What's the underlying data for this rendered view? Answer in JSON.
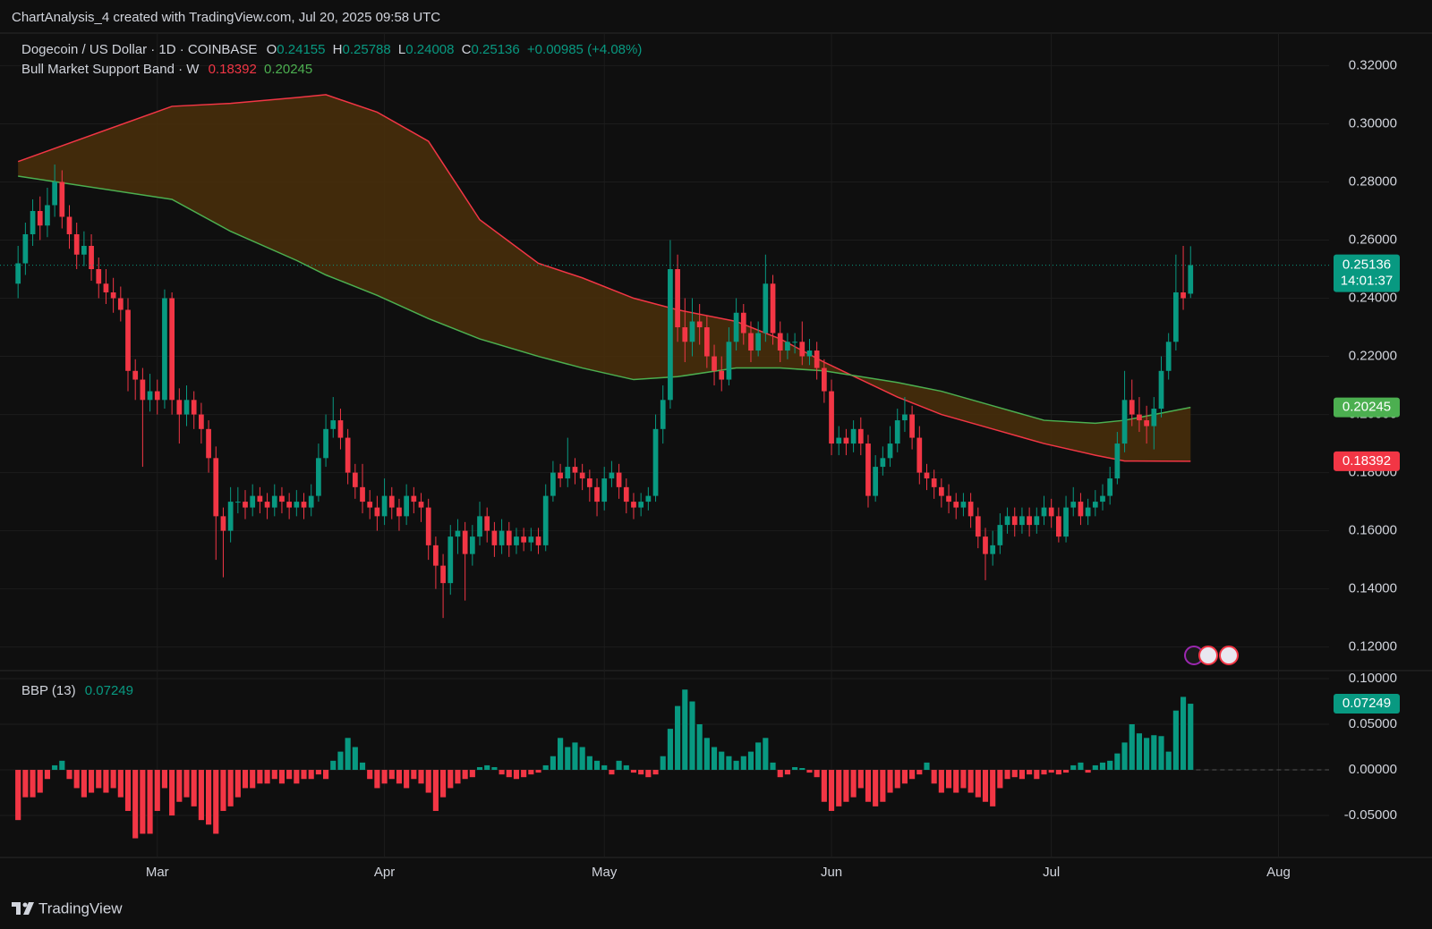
{
  "header": "ChartAnalysis_4 created with TradingView.com, Jul 20, 2025 09:58 UTC",
  "footer": "TradingView",
  "chart_data": [
    {
      "type": "candlestick",
      "title": "Dogecoin / US Dollar · 1D · COINBASE",
      "ohlc_labels": [
        "O",
        "H",
        "L",
        "C"
      ],
      "change": "+0.00985 (+4.08%)",
      "countdown": "14:01:37",
      "up_color": "#089981",
      "down_color": "#f23645",
      "grid": true,
      "xlim": [
        -1,
        178.9
      ],
      "xticks": [
        {
          "value": 19,
          "label": "Mar"
        },
        {
          "value": 50,
          "label": "Apr"
        },
        {
          "value": 80,
          "label": "May"
        },
        {
          "value": 111,
          "label": "Jun"
        },
        {
          "value": 141,
          "label": "Jul"
        },
        {
          "value": 172,
          "label": "Aug"
        }
      ],
      "ylim": [
        0.1119,
        0.3312
      ],
      "yticks": [
        {
          "value": 0.12,
          "label": "0.12000"
        },
        {
          "value": 0.14,
          "label": "0.14000"
        },
        {
          "value": 0.16,
          "label": "0.16000"
        },
        {
          "value": 0.18,
          "label": "0.18000"
        },
        {
          "value": 0.2,
          "label": "0.20000"
        },
        {
          "value": 0.22,
          "label": "0.22000"
        },
        {
          "value": 0.24,
          "label": "0.24000"
        },
        {
          "value": 0.26,
          "label": "0.26000"
        },
        {
          "value": 0.28,
          "label": "0.28000"
        },
        {
          "value": 0.3,
          "label": "0.30000"
        },
        {
          "value": 0.32,
          "label": "0.32000"
        }
      ],
      "open": [
        0.245,
        0.252,
        0.262,
        0.27,
        0.265,
        0.272,
        0.28,
        0.268,
        0.262,
        0.255,
        0.258,
        0.25,
        0.245,
        0.242,
        0.24,
        0.236,
        0.215,
        0.212,
        0.205,
        0.208,
        0.205,
        0.24,
        0.205,
        0.2,
        0.205,
        0.2,
        0.195,
        0.185,
        0.165,
        0.16,
        0.17,
        0.17,
        0.168,
        0.172,
        0.17,
        0.168,
        0.172,
        0.17,
        0.168,
        0.17,
        0.168,
        0.172,
        0.185,
        0.195,
        0.198,
        0.192,
        0.18,
        0.175,
        0.17,
        0.168,
        0.165,
        0.172,
        0.168,
        0.165,
        0.172,
        0.17,
        0.168,
        0.155,
        0.148,
        0.142,
        0.158,
        0.16,
        0.152,
        0.158,
        0.165,
        0.16,
        0.155,
        0.16,
        0.155,
        0.158,
        0.156,
        0.158,
        0.155,
        0.172,
        0.18,
        0.178,
        0.182,
        0.18,
        0.178,
        0.175,
        0.17,
        0.178,
        0.18,
        0.175,
        0.17,
        0.168,
        0.17,
        0.172,
        0.195,
        0.205,
        0.25,
        0.23,
        0.225,
        0.232,
        0.23,
        0.22,
        0.215,
        0.212,
        0.225,
        0.235,
        0.228,
        0.222,
        0.228,
        0.245,
        0.228,
        0.222,
        0.225,
        0.225,
        0.22,
        0.222,
        0.216,
        0.208,
        0.19,
        0.192,
        0.19,
        0.195,
        0.19,
        0.172,
        0.182,
        0.185,
        0.19,
        0.198,
        0.2,
        0.192,
        0.18,
        0.178,
        0.175,
        0.172,
        0.17,
        0.168,
        0.17,
        0.165,
        0.158,
        0.152,
        0.155,
        0.162,
        0.165,
        0.162,
        0.165,
        0.162,
        0.165,
        0.168,
        0.165,
        0.158,
        0.168,
        0.17,
        0.165,
        0.168,
        0.17,
        0.172,
        0.178,
        0.19,
        0.205,
        0.2,
        0.198,
        0.196,
        0.202,
        0.215,
        0.225,
        0.242,
        0.24155
      ],
      "high": [
        0.258,
        0.266,
        0.274,
        0.275,
        0.278,
        0.286,
        0.284,
        0.272,
        0.266,
        0.263,
        0.262,
        0.254,
        0.25,
        0.247,
        0.244,
        0.24,
        0.219,
        0.216,
        0.214,
        0.212,
        0.243,
        0.242,
        0.209,
        0.21,
        0.208,
        0.204,
        0.198,
        0.189,
        0.168,
        0.175,
        0.175,
        0.174,
        0.176,
        0.175,
        0.173,
        0.176,
        0.175,
        0.173,
        0.174,
        0.173,
        0.176,
        0.19,
        0.2,
        0.206,
        0.202,
        0.195,
        0.183,
        0.183,
        0.174,
        0.172,
        0.178,
        0.175,
        0.171,
        0.176,
        0.175,
        0.173,
        0.171,
        0.158,
        0.152,
        0.162,
        0.164,
        0.163,
        0.162,
        0.17,
        0.168,
        0.163,
        0.164,
        0.163,
        0.161,
        0.161,
        0.161,
        0.161,
        0.176,
        0.184,
        0.183,
        0.192,
        0.185,
        0.183,
        0.181,
        0.178,
        0.182,
        0.184,
        0.183,
        0.178,
        0.173,
        0.173,
        0.175,
        0.2,
        0.21,
        0.26,
        0.255,
        0.24,
        0.24,
        0.238,
        0.234,
        0.224,
        0.22,
        0.23,
        0.24,
        0.238,
        0.232,
        0.232,
        0.255,
        0.248,
        0.232,
        0.228,
        0.228,
        0.232,
        0.226,
        0.225,
        0.219,
        0.212,
        0.196,
        0.195,
        0.198,
        0.199,
        0.193,
        0.186,
        0.189,
        0.196,
        0.202,
        0.206,
        0.203,
        0.196,
        0.183,
        0.181,
        0.178,
        0.176,
        0.173,
        0.173,
        0.173,
        0.168,
        0.161,
        0.16,
        0.166,
        0.168,
        0.168,
        0.168,
        0.168,
        0.168,
        0.172,
        0.171,
        0.168,
        0.172,
        0.175,
        0.173,
        0.171,
        0.174,
        0.176,
        0.182,
        0.194,
        0.215,
        0.212,
        0.206,
        0.203,
        0.206,
        0.22,
        0.228,
        0.255,
        0.258,
        0.25788
      ],
      "low": [
        0.24,
        0.248,
        0.258,
        0.26,
        0.261,
        0.268,
        0.264,
        0.257,
        0.25,
        0.251,
        0.246,
        0.24,
        0.238,
        0.235,
        0.232,
        0.208,
        0.205,
        0.182,
        0.201,
        0.2,
        0.202,
        0.2,
        0.19,
        0.196,
        0.195,
        0.19,
        0.18,
        0.15,
        0.144,
        0.156,
        0.166,
        0.164,
        0.165,
        0.166,
        0.164,
        0.165,
        0.166,
        0.164,
        0.165,
        0.164,
        0.165,
        0.17,
        0.182,
        0.192,
        0.188,
        0.176,
        0.171,
        0.166,
        0.164,
        0.16,
        0.162,
        0.164,
        0.16,
        0.162,
        0.166,
        0.163,
        0.15,
        0.14,
        0.13,
        0.138,
        0.152,
        0.136,
        0.148,
        0.155,
        0.156,
        0.151,
        0.152,
        0.151,
        0.152,
        0.153,
        0.153,
        0.152,
        0.153,
        0.17,
        0.175,
        0.175,
        0.176,
        0.174,
        0.17,
        0.165,
        0.167,
        0.175,
        0.171,
        0.166,
        0.164,
        0.165,
        0.167,
        0.17,
        0.19,
        0.202,
        0.225,
        0.218,
        0.22,
        0.224,
        0.216,
        0.21,
        0.208,
        0.21,
        0.222,
        0.224,
        0.218,
        0.22,
        0.225,
        0.224,
        0.218,
        0.219,
        0.221,
        0.217,
        0.217,
        0.212,
        0.204,
        0.186,
        0.186,
        0.186,
        0.187,
        0.186,
        0.168,
        0.17,
        0.179,
        0.182,
        0.187,
        0.194,
        0.188,
        0.176,
        0.174,
        0.171,
        0.168,
        0.166,
        0.164,
        0.165,
        0.161,
        0.154,
        0.143,
        0.148,
        0.152,
        0.159,
        0.158,
        0.159,
        0.158,
        0.159,
        0.162,
        0.161,
        0.156,
        0.156,
        0.165,
        0.162,
        0.162,
        0.165,
        0.167,
        0.169,
        0.176,
        0.187,
        0.196,
        0.194,
        0.19,
        0.188,
        0.199,
        0.212,
        0.222,
        0.236,
        0.24008
      ],
      "close": [
        0.252,
        0.262,
        0.27,
        0.265,
        0.272,
        0.28,
        0.268,
        0.262,
        0.255,
        0.258,
        0.25,
        0.245,
        0.242,
        0.24,
        0.236,
        0.215,
        0.212,
        0.205,
        0.208,
        0.205,
        0.24,
        0.205,
        0.2,
        0.205,
        0.2,
        0.195,
        0.185,
        0.165,
        0.16,
        0.17,
        0.17,
        0.168,
        0.172,
        0.17,
        0.168,
        0.172,
        0.17,
        0.168,
        0.17,
        0.168,
        0.172,
        0.185,
        0.195,
        0.198,
        0.192,
        0.18,
        0.175,
        0.17,
        0.168,
        0.165,
        0.172,
        0.168,
        0.165,
        0.172,
        0.17,
        0.168,
        0.155,
        0.148,
        0.142,
        0.158,
        0.16,
        0.152,
        0.158,
        0.165,
        0.16,
        0.155,
        0.16,
        0.155,
        0.158,
        0.156,
        0.158,
        0.155,
        0.172,
        0.18,
        0.178,
        0.182,
        0.18,
        0.178,
        0.175,
        0.17,
        0.178,
        0.18,
        0.175,
        0.17,
        0.168,
        0.17,
        0.172,
        0.195,
        0.205,
        0.25,
        0.23,
        0.225,
        0.232,
        0.23,
        0.22,
        0.215,
        0.212,
        0.225,
        0.235,
        0.228,
        0.222,
        0.228,
        0.245,
        0.228,
        0.222,
        0.225,
        0.225,
        0.22,
        0.222,
        0.216,
        0.208,
        0.19,
        0.192,
        0.19,
        0.195,
        0.19,
        0.172,
        0.182,
        0.185,
        0.19,
        0.198,
        0.2,
        0.192,
        0.18,
        0.178,
        0.175,
        0.172,
        0.17,
        0.168,
        0.17,
        0.165,
        0.158,
        0.152,
        0.155,
        0.162,
        0.165,
        0.162,
        0.165,
        0.162,
        0.165,
        0.168,
        0.165,
        0.158,
        0.168,
        0.17,
        0.165,
        0.168,
        0.17,
        0.172,
        0.178,
        0.19,
        0.205,
        0.2,
        0.198,
        0.196,
        0.202,
        0.215,
        0.225,
        0.242,
        0.24,
        0.25136
      ],
      "band": {
        "name": "Bull Market Support Band · W",
        "fill": "#4a2f0b",
        "x": [
          0,
          21,
          29,
          38,
          42,
          49,
          56,
          63,
          71,
          77,
          84,
          90,
          98,
          104,
          110,
          115,
          120,
          126,
          133,
          140,
          147,
          151,
          160
        ],
        "series": [
          {
            "color": "#f23645",
            "values": [
              0.287,
              0.306,
              0.307,
              0.309,
              0.31,
              0.304,
              0.294,
              0.267,
              0.252,
              0.247,
              0.24,
              0.236,
              0.232,
              0.226,
              0.218,
              0.212,
              0.206,
              0.2,
              0.195,
              0.19,
              0.186,
              0.184,
              0.18392
            ]
          },
          {
            "color": "#4caf50",
            "values": [
              0.282,
              0.274,
              0.263,
              0.253,
              0.248,
              0.241,
              0.233,
              0.226,
              0.22,
              0.216,
              0.212,
              0.213,
              0.216,
              0.216,
              0.215,
              0.213,
              0.211,
              0.208,
              0.203,
              0.198,
              0.197,
              0.198,
              0.20245
            ]
          }
        ]
      }
    },
    {
      "type": "bar",
      "title": "BBP (13)",
      "up_color": "#089981",
      "down_color": "#f23645",
      "ylim": [
        -0.096,
        0.1088
      ],
      "yticks": [
        {
          "value": -0.05,
          "label": "-0.05000"
        },
        {
          "value": 0,
          "label": "0.00000"
        },
        {
          "value": 0.05,
          "label": "0.05000"
        },
        {
          "value": 0.1,
          "label": "0.10000"
        }
      ],
      "values": [
        -0.055,
        -0.03,
        -0.03,
        -0.025,
        -0.01,
        0.005,
        0.01,
        -0.01,
        -0.02,
        -0.03,
        -0.025,
        -0.02,
        -0.025,
        -0.02,
        -0.03,
        -0.045,
        -0.075,
        -0.07,
        -0.07,
        -0.045,
        -0.02,
        -0.05,
        -0.035,
        -0.03,
        -0.04,
        -0.055,
        -0.06,
        -0.07,
        -0.045,
        -0.04,
        -0.03,
        -0.02,
        -0.02,
        -0.015,
        -0.015,
        -0.01,
        -0.015,
        -0.01,
        -0.015,
        -0.01,
        -0.01,
        -0.005,
        -0.01,
        0.01,
        0.02,
        0.035,
        0.025,
        0.008,
        -0.01,
        -0.02,
        -0.015,
        -0.01,
        -0.015,
        -0.02,
        -0.01,
        -0.015,
        -0.025,
        -0.045,
        -0.03,
        -0.02,
        -0.015,
        -0.01,
        -0.008,
        0.003,
        0.005,
        0.003,
        -0.005,
        -0.008,
        -0.01,
        -0.008,
        -0.005,
        -0.003,
        0.005,
        0.015,
        0.035,
        0.025,
        0.03,
        0.025,
        0.015,
        0.01,
        0.005,
        -0.005,
        0.01,
        0.005,
        -0.003,
        -0.005,
        -0.008,
        -0.005,
        0.015,
        0.045,
        0.07,
        0.088,
        0.075,
        0.05,
        0.035,
        0.025,
        0.02,
        0.015,
        0.01,
        0.015,
        0.02,
        0.03,
        0.035,
        0.008,
        -0.008,
        -0.005,
        0.003,
        0.002,
        -0.003,
        -0.008,
        -0.035,
        -0.045,
        -0.04,
        -0.035,
        -0.03,
        -0.02,
        -0.035,
        -0.04,
        -0.035,
        -0.025,
        -0.02,
        -0.015,
        -0.01,
        -0.005,
        0.008,
        -0.015,
        -0.025,
        -0.02,
        -0.025,
        -0.02,
        -0.025,
        -0.03,
        -0.035,
        -0.04,
        -0.02,
        -0.01,
        -0.008,
        -0.01,
        -0.005,
        -0.01,
        -0.005,
        -0.003,
        -0.005,
        -0.003,
        0.005,
        0.008,
        -0.003,
        0.005,
        0.008,
        0.01,
        0.018,
        0.03,
        0.05,
        0.04,
        0.035,
        0.038,
        0.037,
        0.02,
        0.065,
        0.08,
        0.07249
      ]
    }
  ]
}
